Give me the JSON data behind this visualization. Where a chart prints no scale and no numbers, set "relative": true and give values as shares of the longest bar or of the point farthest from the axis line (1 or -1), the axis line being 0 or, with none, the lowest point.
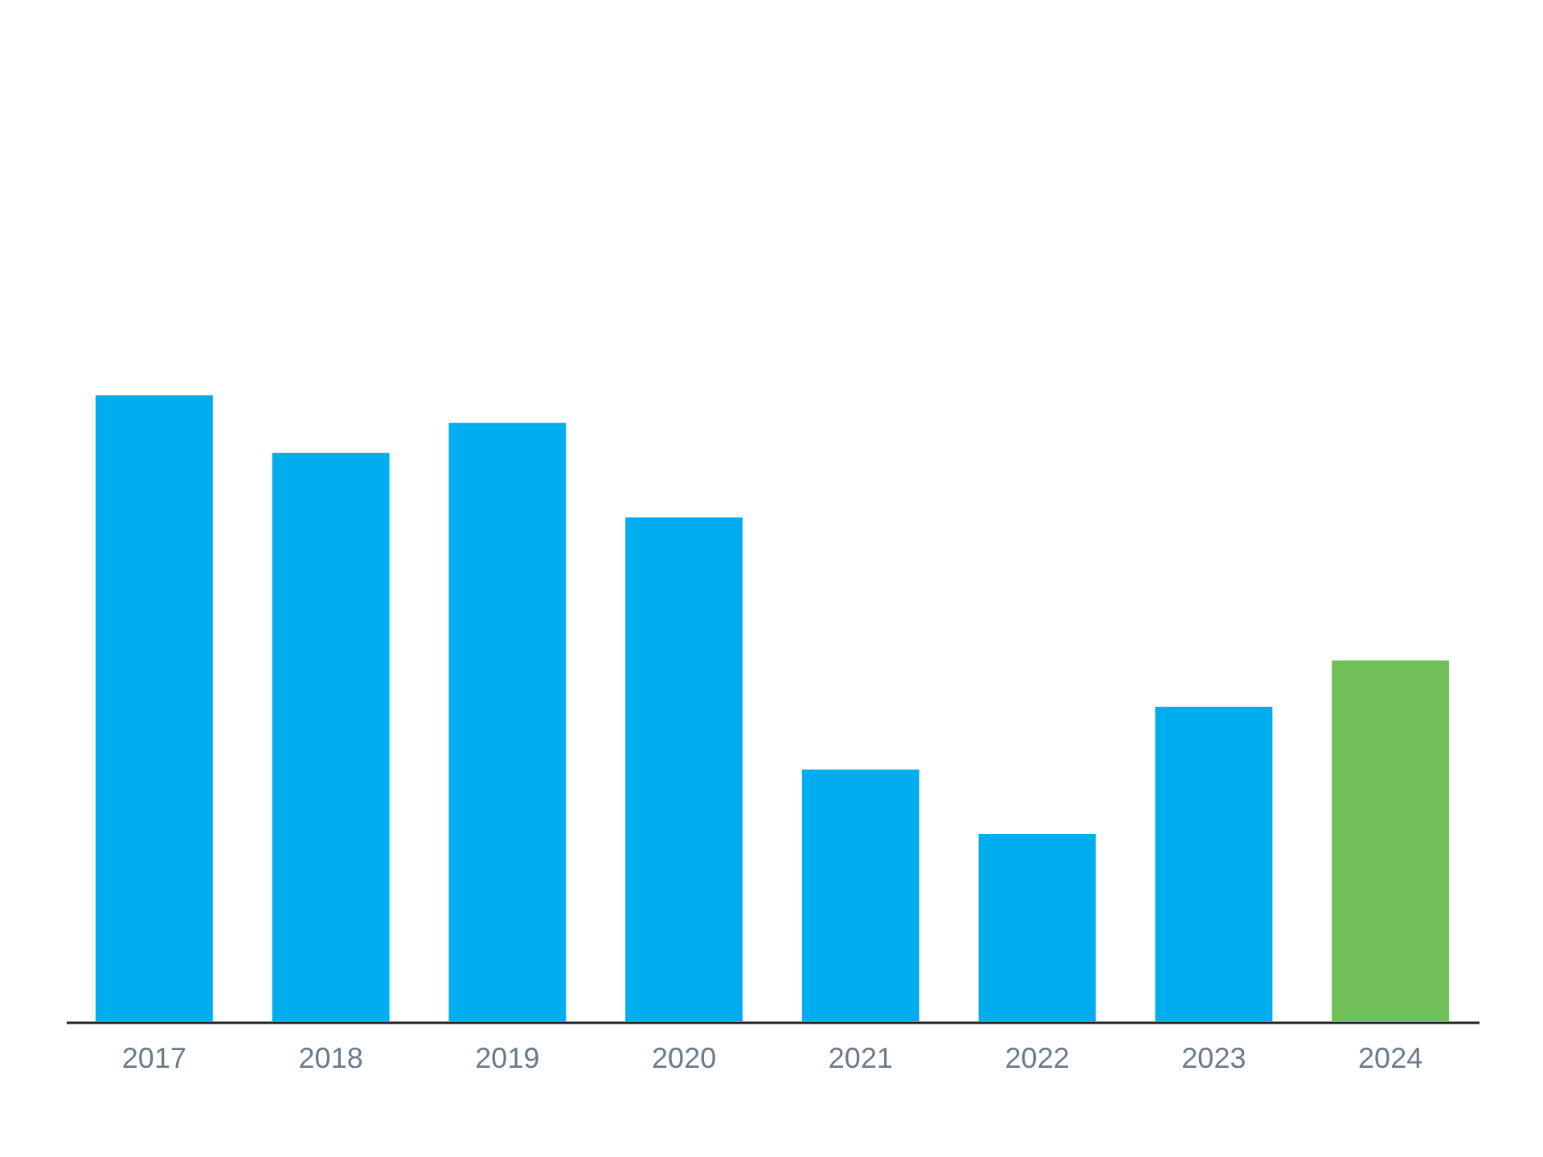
{
  "chart_data": {
    "type": "bar",
    "relative": true,
    "categories": [
      "2017",
      "2018",
      "2019",
      "2020",
      "2021",
      "2022",
      "2023",
      "2024"
    ],
    "values": [
      1,
      0.908,
      0.956,
      0.805,
      0.403,
      0.3,
      0.503,
      0.577
    ],
    "colors": [
      "#00adef",
      "#00adef",
      "#00adef",
      "#00adef",
      "#00adef",
      "#00adef",
      "#00adef",
      "#72c05a"
    ],
    "grid": false
  }
}
